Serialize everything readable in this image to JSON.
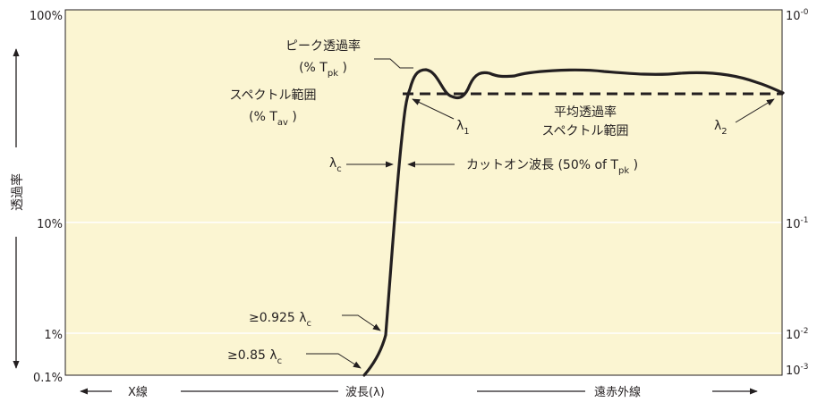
{
  "colors": {
    "plot_background": "#fbf5d2",
    "curve": "#231f20",
    "gridline": "#ffffff",
    "text": "#231f20"
  },
  "axes": {
    "left_ticks": [
      "100%",
      "10%",
      "1%",
      "0.1%"
    ],
    "right_ticks": [
      {
        "base": "10",
        "exp": "-0"
      },
      {
        "base": "10",
        "exp": "-1"
      },
      {
        "base": "10",
        "exp": "-2"
      },
      {
        "base": "10",
        "exp": "-3"
      }
    ],
    "ylabel": "透過率",
    "xlabel": "波長(λ)",
    "x_left": "X線",
    "x_right": "遠赤外線",
    "left_arrows": [
      "up-arrow-icon",
      "down-arrow-icon"
    ],
    "bottom_arrows": [
      "left-arrow-icon",
      "right-arrow-icon"
    ]
  },
  "annotations": {
    "peak": {
      "line1": "ピーク透過率",
      "prefix": "(% T",
      "sub": "pk",
      "suffix": " )"
    },
    "spectral": {
      "line1": "スペクトル範囲",
      "prefix": "(% T",
      "sub": "av",
      "suffix": " )"
    },
    "avg": {
      "line1": "平均透過率",
      "line2": "スペクトル範囲"
    },
    "lambda1": {
      "base": "λ",
      "sub": "1"
    },
    "lambda2": {
      "base": "λ",
      "sub": "2"
    },
    "lambdac": {
      "base": "λ",
      "sub": "c"
    },
    "cuton": {
      "prefix": "カットオン波長 (50% of T",
      "sub": "pk",
      "suffix": " )"
    },
    "p0925": {
      "prefix": "≥0.925 λ",
      "sub": "c"
    },
    "p085": {
      "prefix": "≥0.85 λ",
      "sub": "c"
    }
  }
}
